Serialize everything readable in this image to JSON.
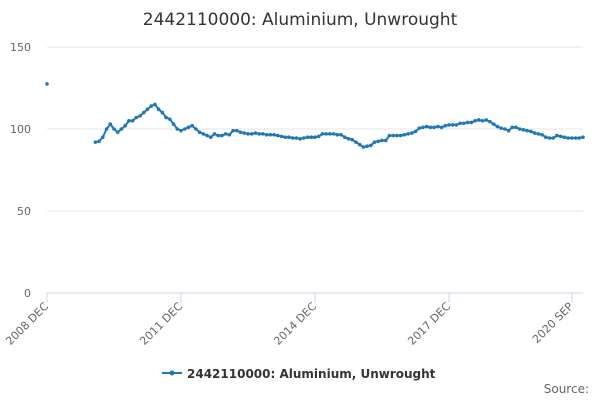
{
  "chart_data": {
    "type": "line",
    "title": "2442110000: Aluminium, Unwrought",
    "xlabel": "",
    "ylabel": "",
    "x_tick_labels": [
      "2008 DEC",
      "2011 DEC",
      "2014 DEC",
      "2017 DEC",
      "2020 SEP"
    ],
    "y_ticks": [
      0,
      50,
      100,
      150
    ],
    "ylim": [
      0,
      150
    ],
    "grid": "horizontal",
    "legend_position": "bottom-center",
    "series_color": "#1f78b4",
    "credits": "Source:",
    "series": [
      {
        "name": "2442110000: Aluminium, Unwrought",
        "points": [
          {
            "x": "2008-12",
            "y": 127.5
          },
          {
            "x": "2010-01",
            "y": 92.0
          },
          {
            "x": "2010-02",
            "y": 92.5
          },
          {
            "x": "2010-03",
            "y": 95.0
          },
          {
            "x": "2010-04",
            "y": 100.0
          },
          {
            "x": "2010-05",
            "y": 103.0
          },
          {
            "x": "2010-06",
            "y": 100.0
          },
          {
            "x": "2010-07",
            "y": 98.0
          },
          {
            "x": "2010-08",
            "y": 100.0
          },
          {
            "x": "2010-09",
            "y": 102.0
          },
          {
            "x": "2010-10",
            "y": 105.0
          },
          {
            "x": "2010-11",
            "y": 105.0
          },
          {
            "x": "2010-12",
            "y": 107.0
          },
          {
            "x": "2011-01",
            "y": 108.0
          },
          {
            "x": "2011-02",
            "y": 110.0
          },
          {
            "x": "2011-03",
            "y": 112.0
          },
          {
            "x": "2011-04",
            "y": 114.0
          },
          {
            "x": "2011-05",
            "y": 115.0
          },
          {
            "x": "2011-06",
            "y": 112.0
          },
          {
            "x": "2011-07",
            "y": 110.0
          },
          {
            "x": "2011-08",
            "y": 107.0
          },
          {
            "x": "2011-09",
            "y": 106.0
          },
          {
            "x": "2011-10",
            "y": 103.0
          },
          {
            "x": "2011-11",
            "y": 100.0
          },
          {
            "x": "2011-12",
            "y": 99.0
          },
          {
            "x": "2012-01",
            "y": 100.0
          },
          {
            "x": "2012-02",
            "y": 101.0
          },
          {
            "x": "2012-03",
            "y": 102.0
          },
          {
            "x": "2012-04",
            "y": 100.0
          },
          {
            "x": "2012-05",
            "y": 98.0
          },
          {
            "x": "2012-06",
            "y": 97.0
          },
          {
            "x": "2012-07",
            "y": 96.0
          },
          {
            "x": "2012-08",
            "y": 95.0
          },
          {
            "x": "2012-09",
            "y": 97.0
          },
          {
            "x": "2012-10",
            "y": 96.0
          },
          {
            "x": "2012-11",
            "y": 96.0
          },
          {
            "x": "2012-12",
            "y": 97.0
          },
          {
            "x": "2013-01",
            "y": 96.5
          },
          {
            "x": "2013-02",
            "y": 99.0
          },
          {
            "x": "2013-03",
            "y": 99.0
          },
          {
            "x": "2013-04",
            "y": 98.0
          },
          {
            "x": "2013-05",
            "y": 97.5
          },
          {
            "x": "2013-06",
            "y": 97.0
          },
          {
            "x": "2013-07",
            "y": 97.0
          },
          {
            "x": "2013-08",
            "y": 97.5
          },
          {
            "x": "2013-09",
            "y": 97.0
          },
          {
            "x": "2013-10",
            "y": 97.0
          },
          {
            "x": "2013-11",
            "y": 96.5
          },
          {
            "x": "2013-12",
            "y": 96.5
          },
          {
            "x": "2014-01",
            "y": 96.5
          },
          {
            "x": "2014-02",
            "y": 96.0
          },
          {
            "x": "2014-03",
            "y": 95.5
          },
          {
            "x": "2014-04",
            "y": 95.0
          },
          {
            "x": "2014-05",
            "y": 95.0
          },
          {
            "x": "2014-06",
            "y": 94.5
          },
          {
            "x": "2014-07",
            "y": 94.5
          },
          {
            "x": "2014-08",
            "y": 94.0
          },
          {
            "x": "2014-09",
            "y": 94.5
          },
          {
            "x": "2014-10",
            "y": 95.0
          },
          {
            "x": "2014-11",
            "y": 95.0
          },
          {
            "x": "2014-12",
            "y": 95.0
          },
          {
            "x": "2015-01",
            "y": 95.5
          },
          {
            "x": "2015-02",
            "y": 97.0
          },
          {
            "x": "2015-03",
            "y": 97.0
          },
          {
            "x": "2015-04",
            "y": 97.0
          },
          {
            "x": "2015-05",
            "y": 97.0
          },
          {
            "x": "2015-06",
            "y": 96.5
          },
          {
            "x": "2015-07",
            "y": 96.5
          },
          {
            "x": "2015-08",
            "y": 95.0
          },
          {
            "x": "2015-09",
            "y": 94.0
          },
          {
            "x": "2015-10",
            "y": 93.5
          },
          {
            "x": "2015-11",
            "y": 92.0
          },
          {
            "x": "2015-12",
            "y": 90.5
          },
          {
            "x": "2016-01",
            "y": 89.0
          },
          {
            "x": "2016-02",
            "y": 89.5
          },
          {
            "x": "2016-03",
            "y": 90.0
          },
          {
            "x": "2016-04",
            "y": 92.0
          },
          {
            "x": "2016-05",
            "y": 92.5
          },
          {
            "x": "2016-06",
            "y": 93.0
          },
          {
            "x": "2016-07",
            "y": 93.0
          },
          {
            "x": "2016-08",
            "y": 96.0
          },
          {
            "x": "2016-09",
            "y": 96.0
          },
          {
            "x": "2016-10",
            "y": 96.0
          },
          {
            "x": "2016-11",
            "y": 96.0
          },
          {
            "x": "2016-12",
            "y": 96.5
          },
          {
            "x": "2017-01",
            "y": 97.0
          },
          {
            "x": "2017-02",
            "y": 97.5
          },
          {
            "x": "2017-03",
            "y": 98.5
          },
          {
            "x": "2017-04",
            "y": 100.5
          },
          {
            "x": "2017-05",
            "y": 101.0
          },
          {
            "x": "2017-06",
            "y": 101.5
          },
          {
            "x": "2017-07",
            "y": 101.0
          },
          {
            "x": "2017-08",
            "y": 101.0
          },
          {
            "x": "2017-09",
            "y": 101.5
          },
          {
            "x": "2017-10",
            "y": 101.0
          },
          {
            "x": "2017-11",
            "y": 102.0
          },
          {
            "x": "2017-12",
            "y": 102.5
          },
          {
            "x": "2018-01",
            "y": 102.5
          },
          {
            "x": "2018-02",
            "y": 102.5
          },
          {
            "x": "2018-03",
            "y": 103.5
          },
          {
            "x": "2018-04",
            "y": 103.5
          },
          {
            "x": "2018-05",
            "y": 104.0
          },
          {
            "x": "2018-06",
            "y": 104.0
          },
          {
            "x": "2018-07",
            "y": 105.0
          },
          {
            "x": "2018-08",
            "y": 105.5
          },
          {
            "x": "2018-09",
            "y": 105.0
          },
          {
            "x": "2018-10",
            "y": 105.5
          },
          {
            "x": "2018-11",
            "y": 104.5
          },
          {
            "x": "2018-12",
            "y": 103.0
          },
          {
            "x": "2019-01",
            "y": 101.5
          },
          {
            "x": "2019-02",
            "y": 100.5
          },
          {
            "x": "2019-03",
            "y": 100.0
          },
          {
            "x": "2019-04",
            "y": 99.0
          },
          {
            "x": "2019-05",
            "y": 101.0
          },
          {
            "x": "2019-06",
            "y": 101.0
          },
          {
            "x": "2019-07",
            "y": 100.0
          },
          {
            "x": "2019-08",
            "y": 99.5
          },
          {
            "x": "2019-09",
            "y": 99.0
          },
          {
            "x": "2019-10",
            "y": 98.5
          },
          {
            "x": "2019-11",
            "y": 97.5
          },
          {
            "x": "2019-12",
            "y": 97.0
          },
          {
            "x": "2020-01",
            "y": 96.5
          },
          {
            "x": "2020-02",
            "y": 95.0
          },
          {
            "x": "2020-03",
            "y": 94.5
          },
          {
            "x": "2020-04",
            "y": 94.5
          },
          {
            "x": "2020-05",
            "y": 96.0
          },
          {
            "x": "2020-06",
            "y": 95.5
          },
          {
            "x": "2020-07",
            "y": 95.0
          },
          {
            "x": "2020-08",
            "y": 94.5
          },
          {
            "x": "2020-09",
            "y": 94.5
          },
          {
            "x": "2020-10",
            "y": 94.5
          },
          {
            "x": "2020-11",
            "y": 94.5
          },
          {
            "x": "2020-12",
            "y": 95.0
          }
        ]
      }
    ]
  }
}
